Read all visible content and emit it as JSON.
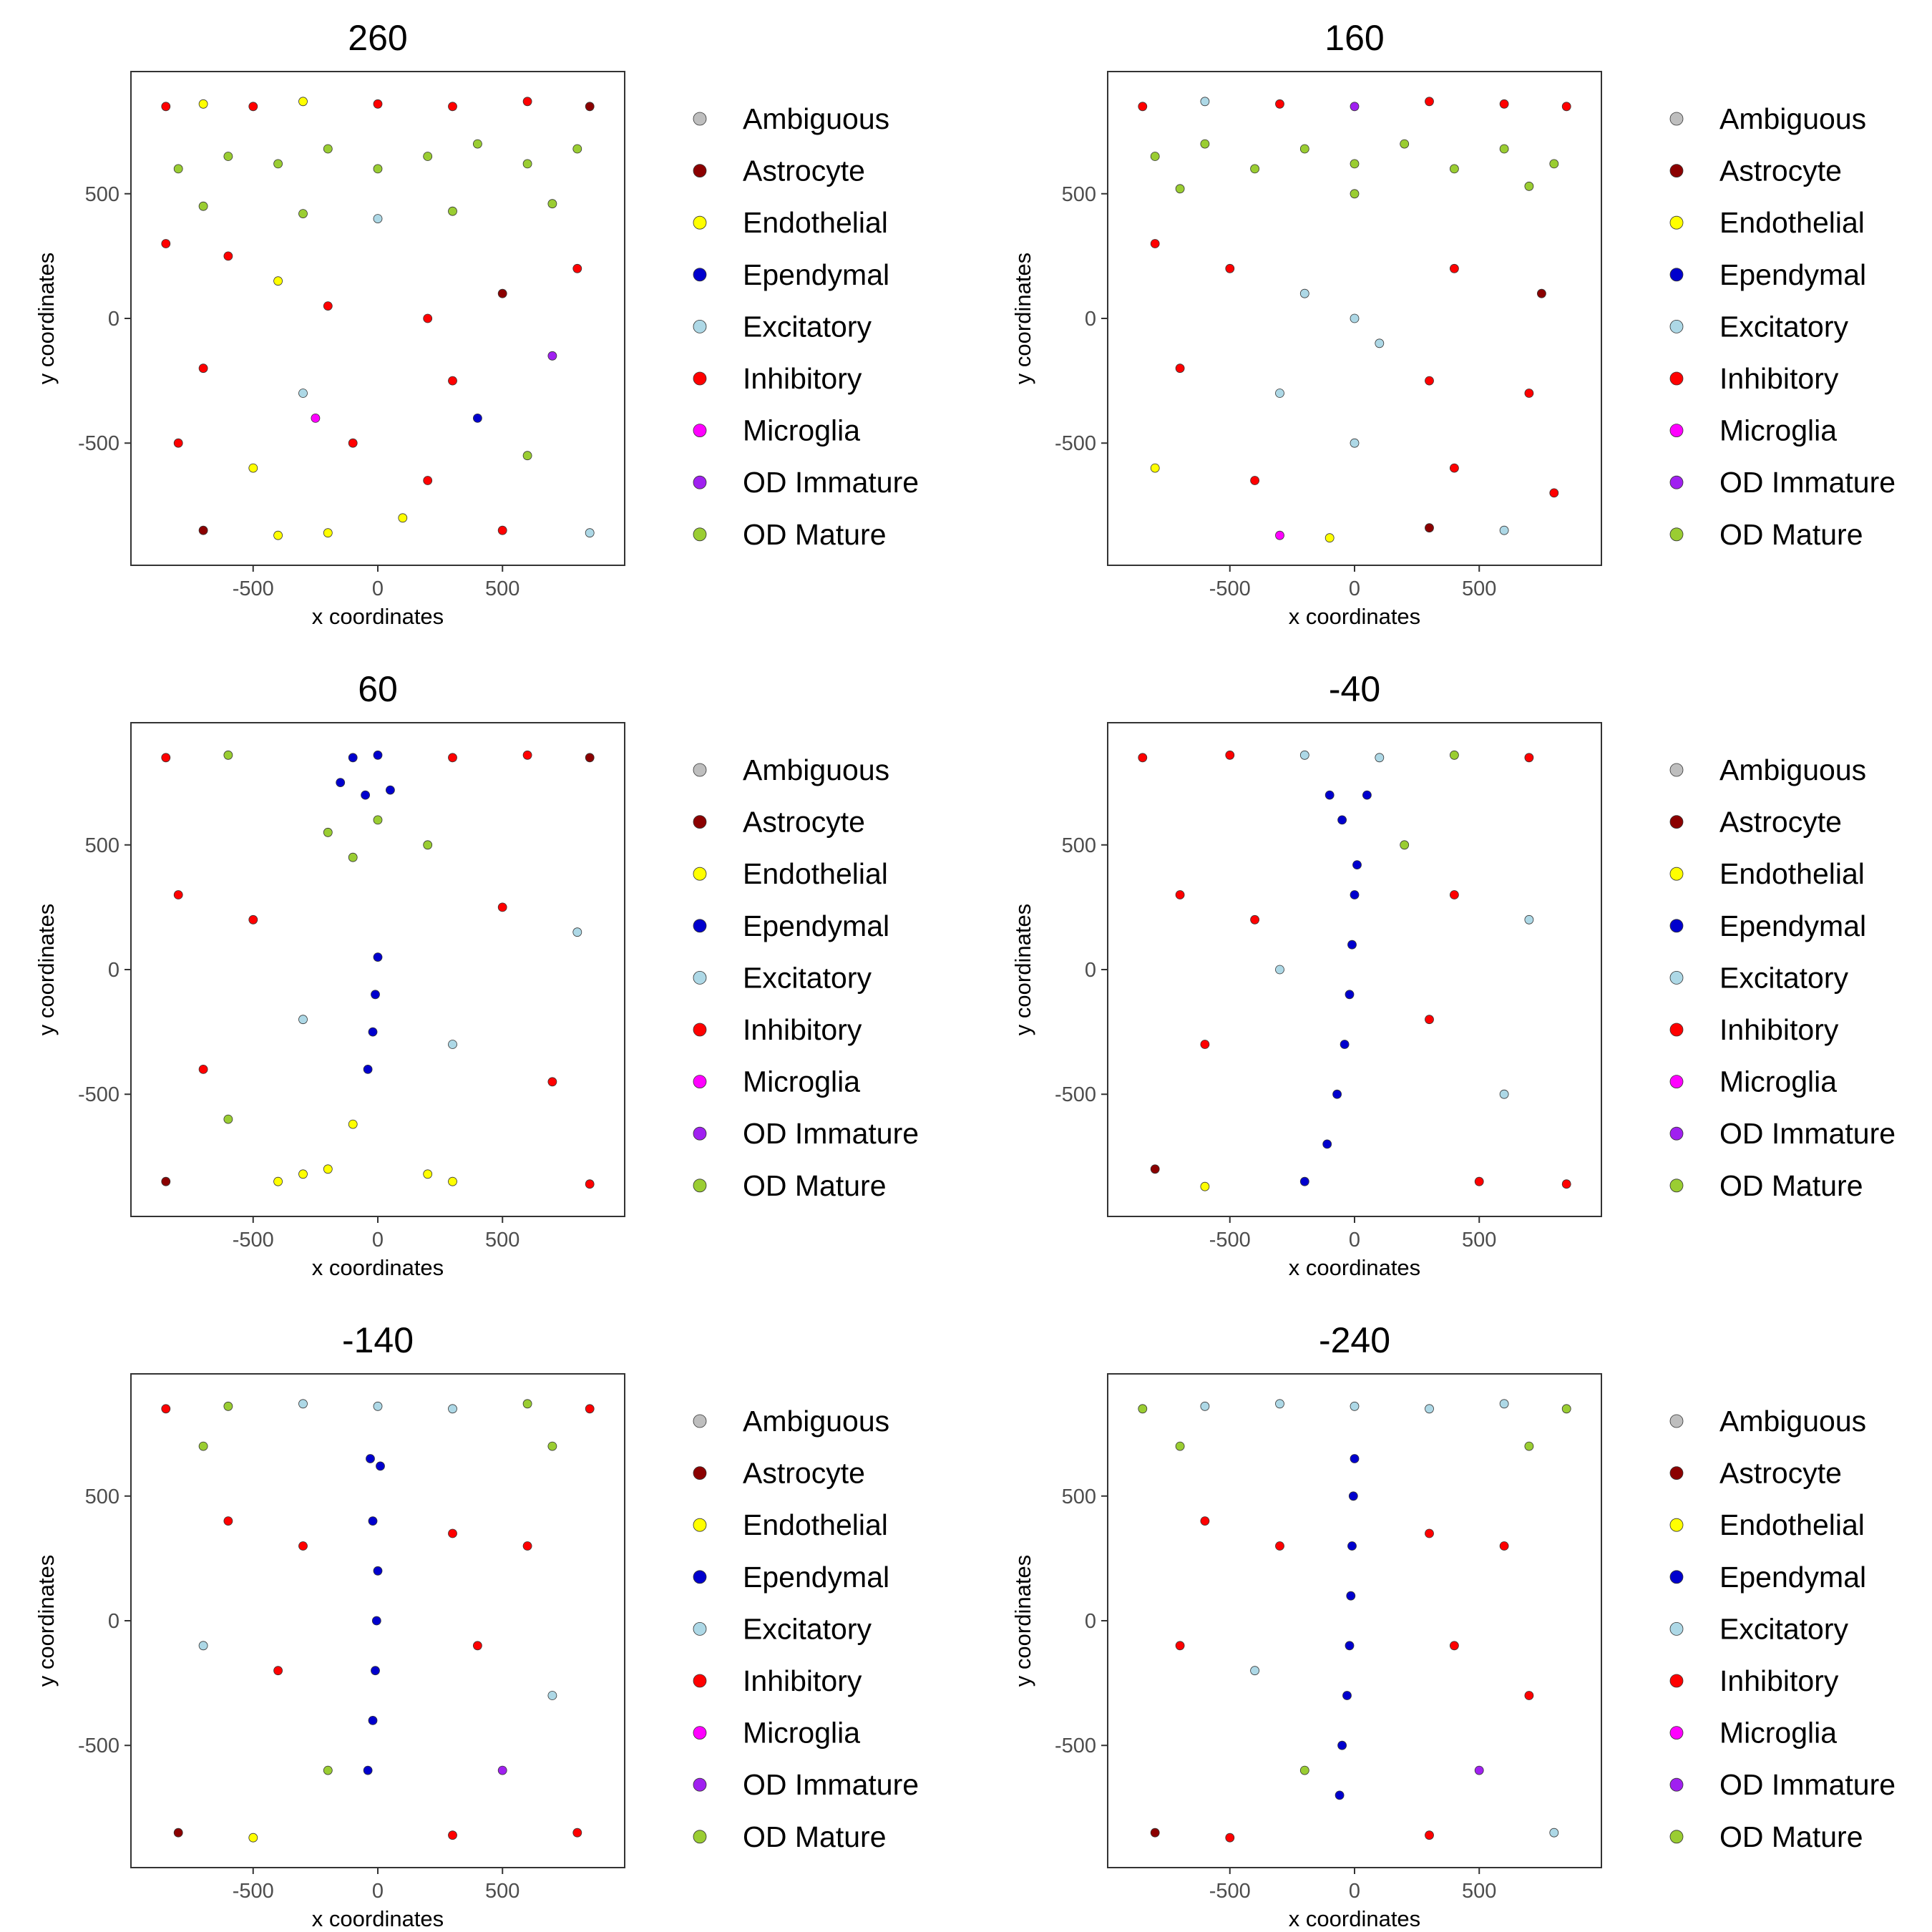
{
  "cell_types": [
    {
      "name": "Ambiguous",
      "color": "#bebebe"
    },
    {
      "name": "Astrocyte",
      "color": "#8b0000"
    },
    {
      "name": "Endothelial",
      "color": "#ffff00"
    },
    {
      "name": "Ependymal",
      "color": "#0000cd"
    },
    {
      "name": "Excitatory",
      "color": "#add8e6"
    },
    {
      "name": "Inhibitory",
      "color": "#ff0000"
    },
    {
      "name": "Microglia",
      "color": "#ff00ff"
    },
    {
      "name": "OD Immature",
      "color": "#a020f0"
    },
    {
      "name": "OD Mature",
      "color": "#9acd32"
    }
  ],
  "chart_data": [
    {
      "type": "scatter",
      "title": "260",
      "xlabel": "x coordinates",
      "ylabel": "y coordinates",
      "xlim": [
        -990,
        990
      ],
      "ylim": [
        -990,
        990
      ],
      "xticks": [
        -500,
        0,
        500
      ],
      "yticks": [
        -500,
        0,
        500
      ],
      "xtick_labels": [
        "-500",
        "0",
        "500"
      ],
      "ytick_labels": [
        "-500",
        "0",
        "500"
      ],
      "grid": false,
      "legend": "right",
      "points": [
        [
          -850,
          850,
          "Inhibitory"
        ],
        [
          -700,
          860,
          "Endothelial"
        ],
        [
          -500,
          850,
          "Inhibitory"
        ],
        [
          -300,
          870,
          "Endothelial"
        ],
        [
          0,
          860,
          "Inhibitory"
        ],
        [
          300,
          850,
          "Inhibitory"
        ],
        [
          600,
          870,
          "Inhibitory"
        ],
        [
          850,
          850,
          "Astrocyte"
        ],
        [
          -800,
          600,
          "OD Mature"
        ],
        [
          -600,
          650,
          "OD Mature"
        ],
        [
          -400,
          620,
          "OD Mature"
        ],
        [
          -200,
          680,
          "OD Mature"
        ],
        [
          0,
          600,
          "OD Mature"
        ],
        [
          200,
          650,
          "OD Mature"
        ],
        [
          400,
          700,
          "OD Mature"
        ],
        [
          600,
          620,
          "OD Mature"
        ],
        [
          800,
          680,
          "OD Mature"
        ],
        [
          -700,
          450,
          "OD Mature"
        ],
        [
          -300,
          420,
          "OD Mature"
        ],
        [
          300,
          430,
          "OD Mature"
        ],
        [
          700,
          460,
          "OD Mature"
        ],
        [
          -850,
          300,
          "Inhibitory"
        ],
        [
          -600,
          250,
          "Inhibitory"
        ],
        [
          -400,
          150,
          "Endothelial"
        ],
        [
          -200,
          50,
          "Inhibitory"
        ],
        [
          0,
          400,
          "Excitatory"
        ],
        [
          200,
          0,
          "Inhibitory"
        ],
        [
          500,
          100,
          "Astrocyte"
        ],
        [
          800,
          200,
          "Inhibitory"
        ],
        [
          -700,
          -200,
          "Inhibitory"
        ],
        [
          -300,
          -300,
          "Excitatory"
        ],
        [
          300,
          -250,
          "Inhibitory"
        ],
        [
          700,
          -150,
          "OD Immature"
        ],
        [
          -800,
          -500,
          "Inhibitory"
        ],
        [
          -500,
          -600,
          "Endothelial"
        ],
        [
          -100,
          -500,
          "Inhibitory"
        ],
        [
          200,
          -650,
          "Inhibitory"
        ],
        [
          600,
          -550,
          "OD Mature"
        ],
        [
          -700,
          -850,
          "Astrocyte"
        ],
        [
          -400,
          -870,
          "Endothelial"
        ],
        [
          -200,
          -860,
          "Endothelial"
        ],
        [
          100,
          -800,
          "Endothelial"
        ],
        [
          500,
          -850,
          "Inhibitory"
        ],
        [
          850,
          -860,
          "Excitatory"
        ],
        [
          -250,
          -400,
          "Microglia"
        ],
        [
          400,
          -400,
          "Ependymal"
        ]
      ]
    },
    {
      "type": "scatter",
      "title": "160",
      "xlabel": "x coordinates",
      "ylabel": "y coordinates",
      "xlim": [
        -990,
        990
      ],
      "ylim": [
        -990,
        990
      ],
      "xticks": [
        -500,
        0,
        500
      ],
      "yticks": [
        -500,
        0,
        500
      ],
      "xtick_labels": [
        "-500",
        "0",
        "500"
      ],
      "ytick_labels": [
        "-500",
        "0",
        "500"
      ],
      "grid": false,
      "legend": "right",
      "points": [
        [
          -850,
          850,
          "Inhibitory"
        ],
        [
          -600,
          870,
          "Excitatory"
        ],
        [
          -300,
          860,
          "Inhibitory"
        ],
        [
          0,
          850,
          "OD Immature"
        ],
        [
          300,
          870,
          "Inhibitory"
        ],
        [
          600,
          860,
          "Inhibitory"
        ],
        [
          850,
          850,
          "Inhibitory"
        ],
        [
          -800,
          650,
          "OD Mature"
        ],
        [
          -600,
          700,
          "OD Mature"
        ],
        [
          -400,
          600,
          "OD Mature"
        ],
        [
          -200,
          680,
          "OD Mature"
        ],
        [
          0,
          620,
          "OD Mature"
        ],
        [
          200,
          700,
          "OD Mature"
        ],
        [
          400,
          600,
          "OD Mature"
        ],
        [
          600,
          680,
          "OD Mature"
        ],
        [
          800,
          620,
          "OD Mature"
        ],
        [
          -700,
          520,
          "OD Mature"
        ],
        [
          0,
          500,
          "OD Mature"
        ],
        [
          700,
          530,
          "OD Mature"
        ],
        [
          -800,
          300,
          "Inhibitory"
        ],
        [
          -500,
          200,
          "Inhibitory"
        ],
        [
          -200,
          100,
          "Excitatory"
        ],
        [
          0,
          0,
          "Excitatory"
        ],
        [
          100,
          -100,
          "Excitatory"
        ],
        [
          400,
          200,
          "Inhibitory"
        ],
        [
          750,
          100,
          "Astrocyte"
        ],
        [
          -700,
          -200,
          "Inhibitory"
        ],
        [
          -300,
          -300,
          "Excitatory"
        ],
        [
          300,
          -250,
          "Inhibitory"
        ],
        [
          700,
          -300,
          "Inhibitory"
        ],
        [
          -800,
          -600,
          "Endothelial"
        ],
        [
          -400,
          -650,
          "Inhibitory"
        ],
        [
          0,
          -500,
          "Excitatory"
        ],
        [
          400,
          -600,
          "Inhibitory"
        ],
        [
          800,
          -700,
          "Inhibitory"
        ],
        [
          -300,
          -870,
          "Microglia"
        ],
        [
          -100,
          -880,
          "Endothelial"
        ],
        [
          300,
          -840,
          "Astrocyte"
        ],
        [
          600,
          -850,
          "Excitatory"
        ]
      ]
    },
    {
      "type": "scatter",
      "title": "60",
      "xlabel": "x coordinates",
      "ylabel": "y coordinates",
      "xlim": [
        -990,
        990
      ],
      "ylim": [
        -990,
        990
      ],
      "xticks": [
        -500,
        0,
        500
      ],
      "yticks": [
        -500,
        0,
        500
      ],
      "xtick_labels": [
        "-500",
        "0",
        "500"
      ],
      "ytick_labels": [
        "-500",
        "0",
        "500"
      ],
      "grid": false,
      "legend": "right",
      "points": [
        [
          -850,
          850,
          "Inhibitory"
        ],
        [
          -600,
          860,
          "OD Mature"
        ],
        [
          -100,
          850,
          "Ependymal"
        ],
        [
          0,
          860,
          "Ependymal"
        ],
        [
          -150,
          750,
          "Ependymal"
        ],
        [
          50,
          720,
          "Ependymal"
        ],
        [
          -50,
          700,
          "Ependymal"
        ],
        [
          300,
          850,
          "Inhibitory"
        ],
        [
          600,
          860,
          "Inhibitory"
        ],
        [
          850,
          850,
          "Astrocyte"
        ],
        [
          -200,
          550,
          "OD Mature"
        ],
        [
          0,
          600,
          "OD Mature"
        ],
        [
          200,
          500,
          "OD Mature"
        ],
        [
          -100,
          450,
          "OD Mature"
        ],
        [
          -800,
          300,
          "Inhibitory"
        ],
        [
          -500,
          200,
          "Inhibitory"
        ],
        [
          500,
          250,
          "Inhibitory"
        ],
        [
          800,
          150,
          "Excitatory"
        ],
        [
          0,
          50,
          "Ependymal"
        ],
        [
          -10,
          -100,
          "Ependymal"
        ],
        [
          -20,
          -250,
          "Ependymal"
        ],
        [
          -40,
          -400,
          "Ependymal"
        ],
        [
          -300,
          -200,
          "Excitatory"
        ],
        [
          300,
          -300,
          "Excitatory"
        ],
        [
          -700,
          -400,
          "Inhibitory"
        ],
        [
          700,
          -450,
          "Inhibitory"
        ],
        [
          -400,
          -850,
          "Endothelial"
        ],
        [
          -300,
          -820,
          "Endothelial"
        ],
        [
          -200,
          -800,
          "Endothelial"
        ],
        [
          200,
          -820,
          "Endothelial"
        ],
        [
          300,
          -850,
          "Endothelial"
        ],
        [
          -850,
          -850,
          "Astrocyte"
        ],
        [
          850,
          -860,
          "Inhibitory"
        ],
        [
          -100,
          -620,
          "Endothelial"
        ],
        [
          -600,
          -600,
          "OD Mature"
        ]
      ]
    },
    {
      "type": "scatter",
      "title": "-40",
      "xlabel": "x coordinates",
      "ylabel": "y coordinates",
      "xlim": [
        -990,
        990
      ],
      "ylim": [
        -990,
        990
      ],
      "xticks": [
        -500,
        0,
        500
      ],
      "yticks": [
        -500,
        0,
        500
      ],
      "xtick_labels": [
        "-500",
        "0",
        "500"
      ],
      "ytick_labels": [
        "-500",
        "0",
        "500"
      ],
      "grid": false,
      "legend": "right",
      "points": [
        [
          -850,
          850,
          "Inhibitory"
        ],
        [
          -500,
          860,
          "Inhibitory"
        ],
        [
          -200,
          860,
          "Excitatory"
        ],
        [
          100,
          850,
          "Excitatory"
        ],
        [
          400,
          860,
          "OD Mature"
        ],
        [
          700,
          850,
          "Inhibitory"
        ],
        [
          -100,
          700,
          "Ependymal"
        ],
        [
          50,
          700,
          "Ependymal"
        ],
        [
          -50,
          600,
          "Ependymal"
        ],
        [
          10,
          420,
          "Ependymal"
        ],
        [
          0,
          300,
          "Ependymal"
        ],
        [
          -10,
          100,
          "Ependymal"
        ],
        [
          -20,
          -100,
          "Ependymal"
        ],
        [
          -40,
          -300,
          "Ependymal"
        ],
        [
          -70,
          -500,
          "Ependymal"
        ],
        [
          -110,
          -700,
          "Ependymal"
        ],
        [
          -200,
          -850,
          "Ependymal"
        ],
        [
          -700,
          300,
          "Inhibitory"
        ],
        [
          -400,
          200,
          "Inhibitory"
        ],
        [
          400,
          300,
          "Inhibitory"
        ],
        [
          700,
          200,
          "Excitatory"
        ],
        [
          -600,
          -300,
          "Inhibitory"
        ],
        [
          300,
          -200,
          "Inhibitory"
        ],
        [
          600,
          -500,
          "Excitatory"
        ],
        [
          -800,
          -800,
          "Astrocyte"
        ],
        [
          -600,
          -870,
          "Endothelial"
        ],
        [
          500,
          -850,
          "Inhibitory"
        ],
        [
          850,
          -860,
          "Inhibitory"
        ],
        [
          -300,
          0,
          "Excitatory"
        ],
        [
          200,
          500,
          "OD Mature"
        ]
      ]
    },
    {
      "type": "scatter",
      "title": "-140",
      "xlabel": "x coordinates",
      "ylabel": "y coordinates",
      "xlim": [
        -990,
        990
      ],
      "ylim": [
        -990,
        990
      ],
      "xticks": [
        -500,
        0,
        500
      ],
      "yticks": [
        -500,
        0,
        500
      ],
      "xtick_labels": [
        "-500",
        "0",
        "500"
      ],
      "ytick_labels": [
        "-500",
        "0",
        "500"
      ],
      "grid": false,
      "legend": "right",
      "points": [
        [
          -850,
          850,
          "Inhibitory"
        ],
        [
          -600,
          860,
          "OD Mature"
        ],
        [
          -300,
          870,
          "Excitatory"
        ],
        [
          0,
          860,
          "Excitatory"
        ],
        [
          300,
          850,
          "Excitatory"
        ],
        [
          600,
          870,
          "OD Mature"
        ],
        [
          850,
          850,
          "Inhibitory"
        ],
        [
          -700,
          700,
          "OD Mature"
        ],
        [
          700,
          700,
          "OD Mature"
        ],
        [
          -30,
          650,
          "Ependymal"
        ],
        [
          10,
          620,
          "Ependymal"
        ],
        [
          -20,
          400,
          "Ependymal"
        ],
        [
          0,
          200,
          "Ependymal"
        ],
        [
          -5,
          0,
          "Ependymal"
        ],
        [
          -10,
          -200,
          "Ependymal"
        ],
        [
          -20,
          -400,
          "Ependymal"
        ],
        [
          -40,
          -600,
          "Ependymal"
        ],
        [
          -600,
          400,
          "Inhibitory"
        ],
        [
          -300,
          300,
          "Inhibitory"
        ],
        [
          300,
          350,
          "Inhibitory"
        ],
        [
          600,
          300,
          "Inhibitory"
        ],
        [
          -700,
          -100,
          "Excitatory"
        ],
        [
          -400,
          -200,
          "Inhibitory"
        ],
        [
          400,
          -100,
          "Inhibitory"
        ],
        [
          700,
          -300,
          "Excitatory"
        ],
        [
          -800,
          -850,
          "Astrocyte"
        ],
        [
          -500,
          -870,
          "Endothelial"
        ],
        [
          300,
          -860,
          "Inhibitory"
        ],
        [
          800,
          -850,
          "Inhibitory"
        ],
        [
          -200,
          -600,
          "OD Mature"
        ],
        [
          500,
          -600,
          "OD Immature"
        ]
      ]
    },
    {
      "type": "scatter",
      "title": "-240",
      "xlabel": "x coordinates",
      "ylabel": "y coordinates",
      "xlim": [
        -990,
        990
      ],
      "ylim": [
        -990,
        990
      ],
      "xticks": [
        -500,
        0,
        500
      ],
      "yticks": [
        -500,
        0,
        500
      ],
      "xtick_labels": [
        "-500",
        "0",
        "500"
      ],
      "ytick_labels": [
        "-500",
        "0",
        "500"
      ],
      "grid": false,
      "legend": "right",
      "points": [
        [
          -850,
          850,
          "OD Mature"
        ],
        [
          -600,
          860,
          "Excitatory"
        ],
        [
          -300,
          870,
          "Excitatory"
        ],
        [
          0,
          860,
          "Excitatory"
        ],
        [
          300,
          850,
          "Excitatory"
        ],
        [
          600,
          870,
          "Excitatory"
        ],
        [
          850,
          850,
          "OD Mature"
        ],
        [
          -700,
          700,
          "OD Mature"
        ],
        [
          700,
          700,
          "OD Mature"
        ],
        [
          0,
          650,
          "Ependymal"
        ],
        [
          -5,
          500,
          "Ependymal"
        ],
        [
          -10,
          300,
          "Ependymal"
        ],
        [
          -15,
          100,
          "Ependymal"
        ],
        [
          -20,
          -100,
          "Ependymal"
        ],
        [
          -30,
          -300,
          "Ependymal"
        ],
        [
          -50,
          -500,
          "Ependymal"
        ],
        [
          -60,
          -700,
          "Ependymal"
        ],
        [
          -600,
          400,
          "Inhibitory"
        ],
        [
          -300,
          300,
          "Inhibitory"
        ],
        [
          300,
          350,
          "Inhibitory"
        ],
        [
          600,
          300,
          "Inhibitory"
        ],
        [
          -700,
          -100,
          "Inhibitory"
        ],
        [
          -400,
          -200,
          "Excitatory"
        ],
        [
          400,
          -100,
          "Inhibitory"
        ],
        [
          700,
          -300,
          "Inhibitory"
        ],
        [
          -800,
          -850,
          "Astrocyte"
        ],
        [
          -500,
          -870,
          "Inhibitory"
        ],
        [
          300,
          -860,
          "Inhibitory"
        ],
        [
          800,
          -850,
          "Excitatory"
        ],
        [
          -200,
          -600,
          "OD Mature"
        ],
        [
          500,
          -600,
          "OD Immature"
        ]
      ]
    }
  ]
}
